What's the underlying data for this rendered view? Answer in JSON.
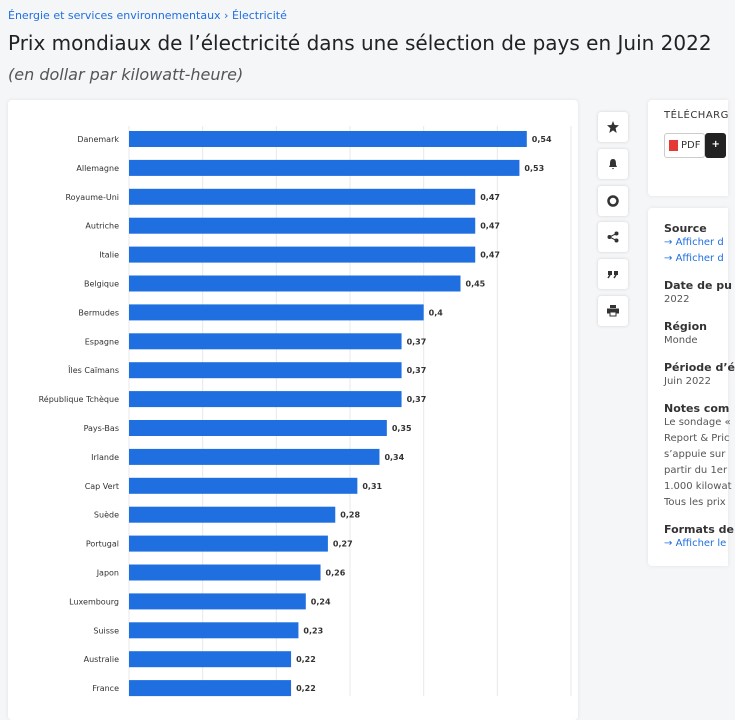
{
  "breadcrumb": {
    "items": [
      "Énergie et services environnementaux",
      "Électricité"
    ],
    "separator": "›"
  },
  "header": {
    "title": "Prix mondiaux de l’électricité dans une sélection de pays en Juin 2022",
    "subtitle": "(en dollar par kilowatt-heure)"
  },
  "chart_data": {
    "type": "bar",
    "orientation": "horizontal",
    "categories": [
      "Danemark",
      "Allemagne",
      "Royaume-Uni",
      "Autriche",
      "Italie",
      "Belgique",
      "Bermudes",
      "Espagne",
      "Îles Caïmans",
      "République Tchèque",
      "Pays-Bas",
      "Irlande",
      "Cap Vert",
      "Suède",
      "Portugal",
      "Japon",
      "Luxembourg",
      "Suisse",
      "Australie",
      "France"
    ],
    "values": [
      0.54,
      0.53,
      0.47,
      0.47,
      0.47,
      0.45,
      0.4,
      0.37,
      0.37,
      0.37,
      0.35,
      0.34,
      0.31,
      0.28,
      0.27,
      0.26,
      0.24,
      0.23,
      0.22,
      0.22
    ],
    "value_labels": [
      "0,54",
      "0,53",
      "0,47",
      "0,47",
      "0,47",
      "0,45",
      "0,4",
      "0,37",
      "0,37",
      "0,37",
      "0,35",
      "0,34",
      "0,31",
      "0,28",
      "0,27",
      "0,26",
      "0,24",
      "0,23",
      "0,22",
      "0,22"
    ],
    "color": "#1f6fe0",
    "xlim": [
      0,
      0.6
    ],
    "xticks": [
      0,
      0.1,
      0.2,
      0.3,
      0.4,
      0.5,
      0.6
    ],
    "grid": true
  },
  "sidebar": {
    "download": {
      "title": "TÉLÉCHARG",
      "pdf": "PDF",
      "more": "+"
    },
    "sections": [
      {
        "title": "Source",
        "links": [
          "Afficher d",
          "Afficher d"
        ]
      },
      {
        "title": "Date de pu",
        "lines": [
          "2022"
        ]
      },
      {
        "title": "Région",
        "lines": [
          "Monde"
        ]
      },
      {
        "title": "Période d’é",
        "lines": [
          "Juin 2022"
        ]
      },
      {
        "title": "Notes com",
        "lines": [
          "Le sondage «",
          "Report & Pric",
          "s’appuie sur",
          "partir du 1er",
          "1.000 kilowat",
          "Tous les prix"
        ]
      },
      {
        "title": "Formats de",
        "links": [
          "Afficher le"
        ]
      }
    ]
  }
}
